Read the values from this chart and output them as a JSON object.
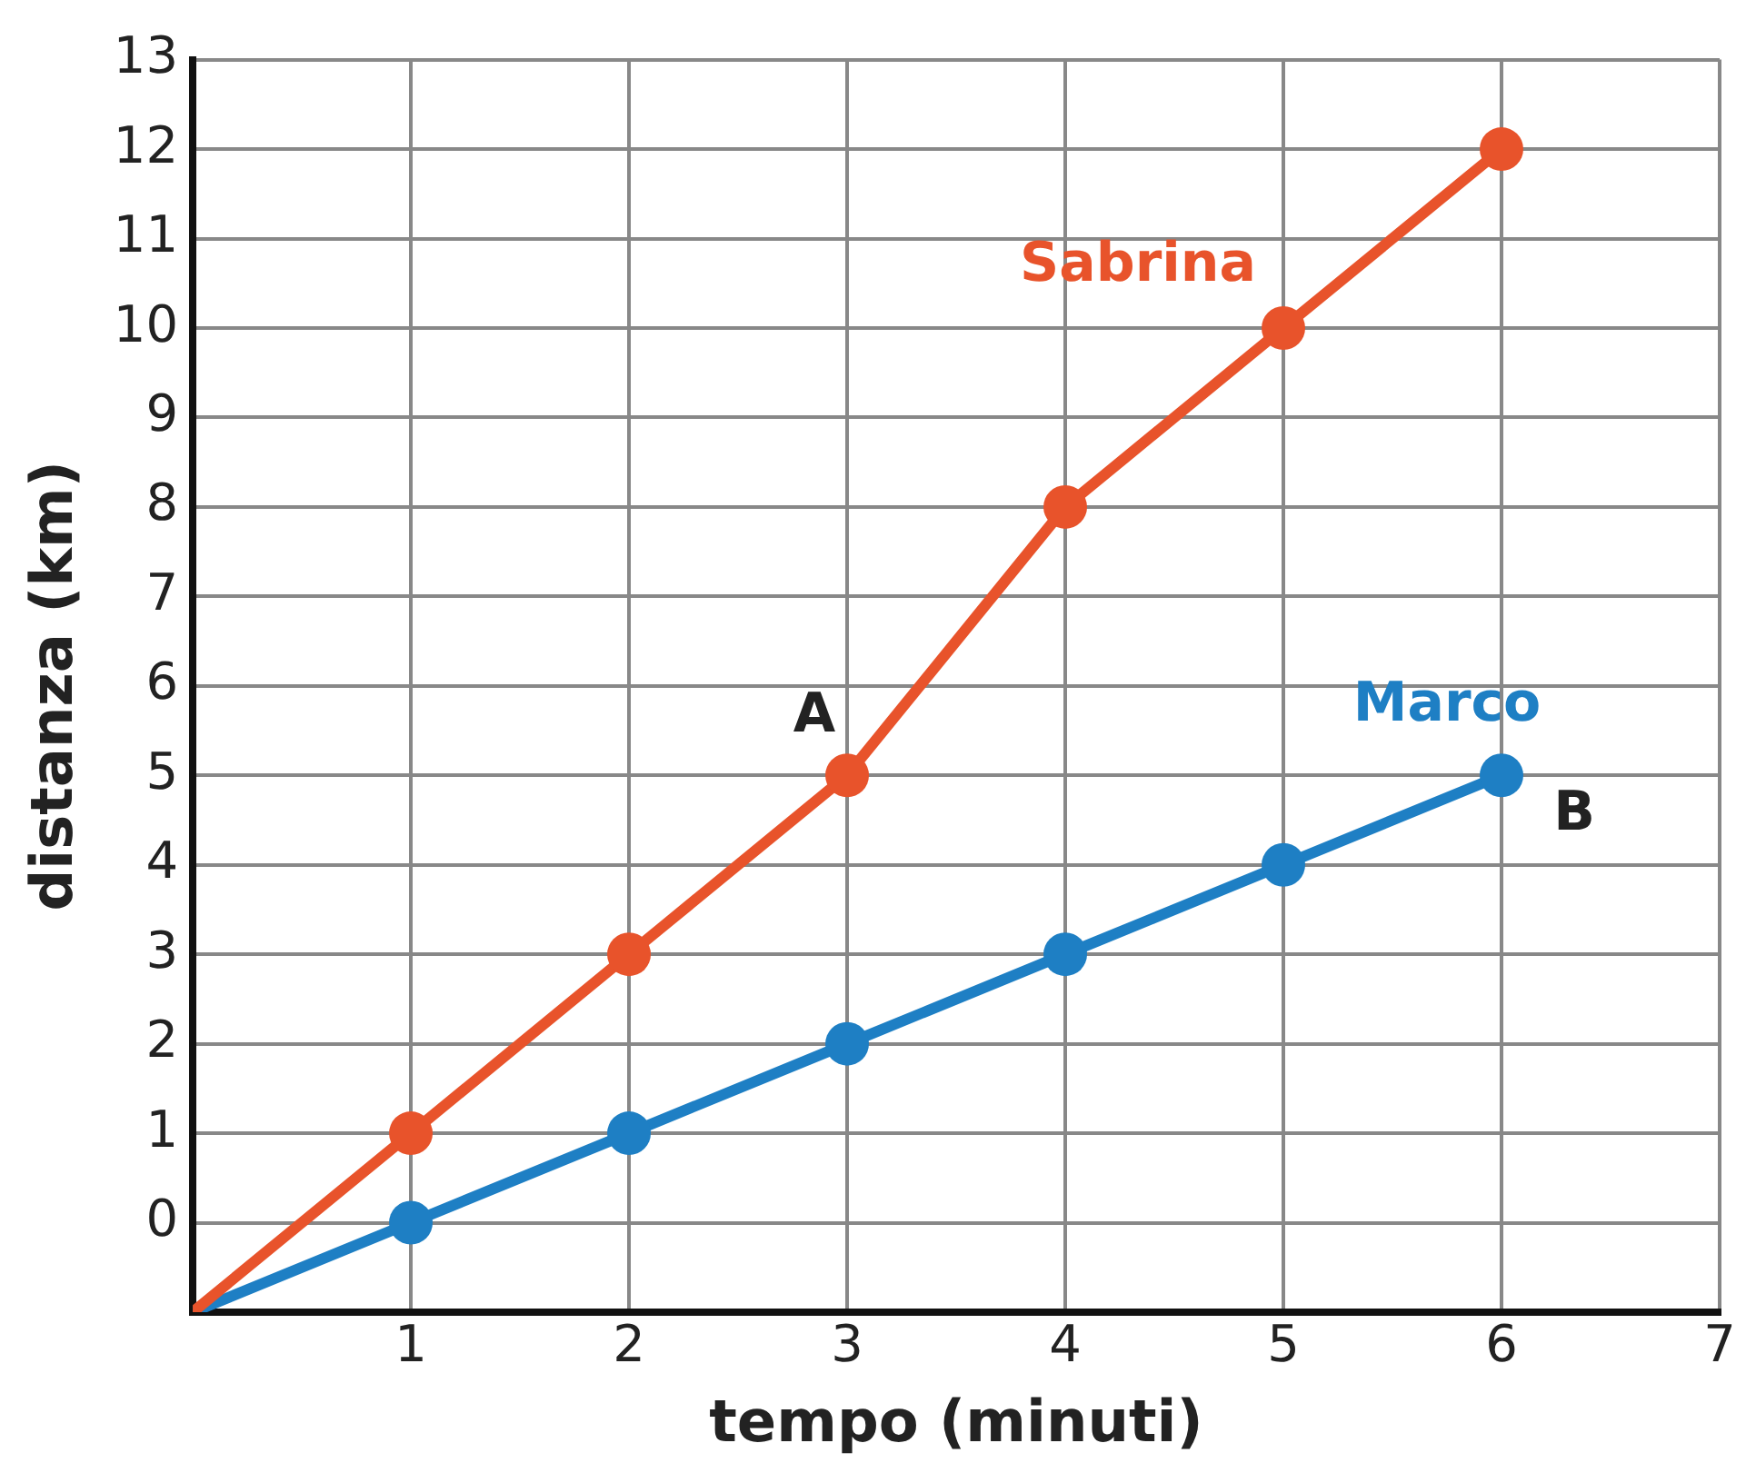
{
  "chart_data": {
    "type": "line",
    "xlabel": "tempo (minuti)",
    "ylabel": "distanza (km)",
    "x": [
      0,
      1,
      2,
      3,
      4,
      5,
      6
    ],
    "series": [
      {
        "name": "Sabrina",
        "color": "#e8532b",
        "values": [
          -1,
          1,
          3,
          5,
          8,
          10,
          12
        ]
      },
      {
        "name": "Marco",
        "color": "#1e7fc4",
        "values": [
          -1,
          0,
          1,
          2,
          3,
          4,
          5
        ]
      }
    ],
    "xlim": [
      0,
      7
    ],
    "xticks": [
      {
        "value": 0,
        "label": null
      },
      1,
      2,
      3,
      4,
      5,
      6,
      7
    ],
    "ylim": [
      -1,
      13
    ],
    "yticks": [
      {
        "value": -1,
        "label": null
      },
      0,
      1,
      2,
      3,
      4,
      5,
      6,
      7,
      8,
      9,
      10,
      11,
      12,
      13
    ],
    "grid": true,
    "marker": "circle",
    "line_style": "solid",
    "legend": false,
    "annotations": [
      {
        "text": "A",
        "x": 3,
        "y": 5
      },
      {
        "text": "B",
        "x": 6,
        "y": 5
      }
    ]
  }
}
